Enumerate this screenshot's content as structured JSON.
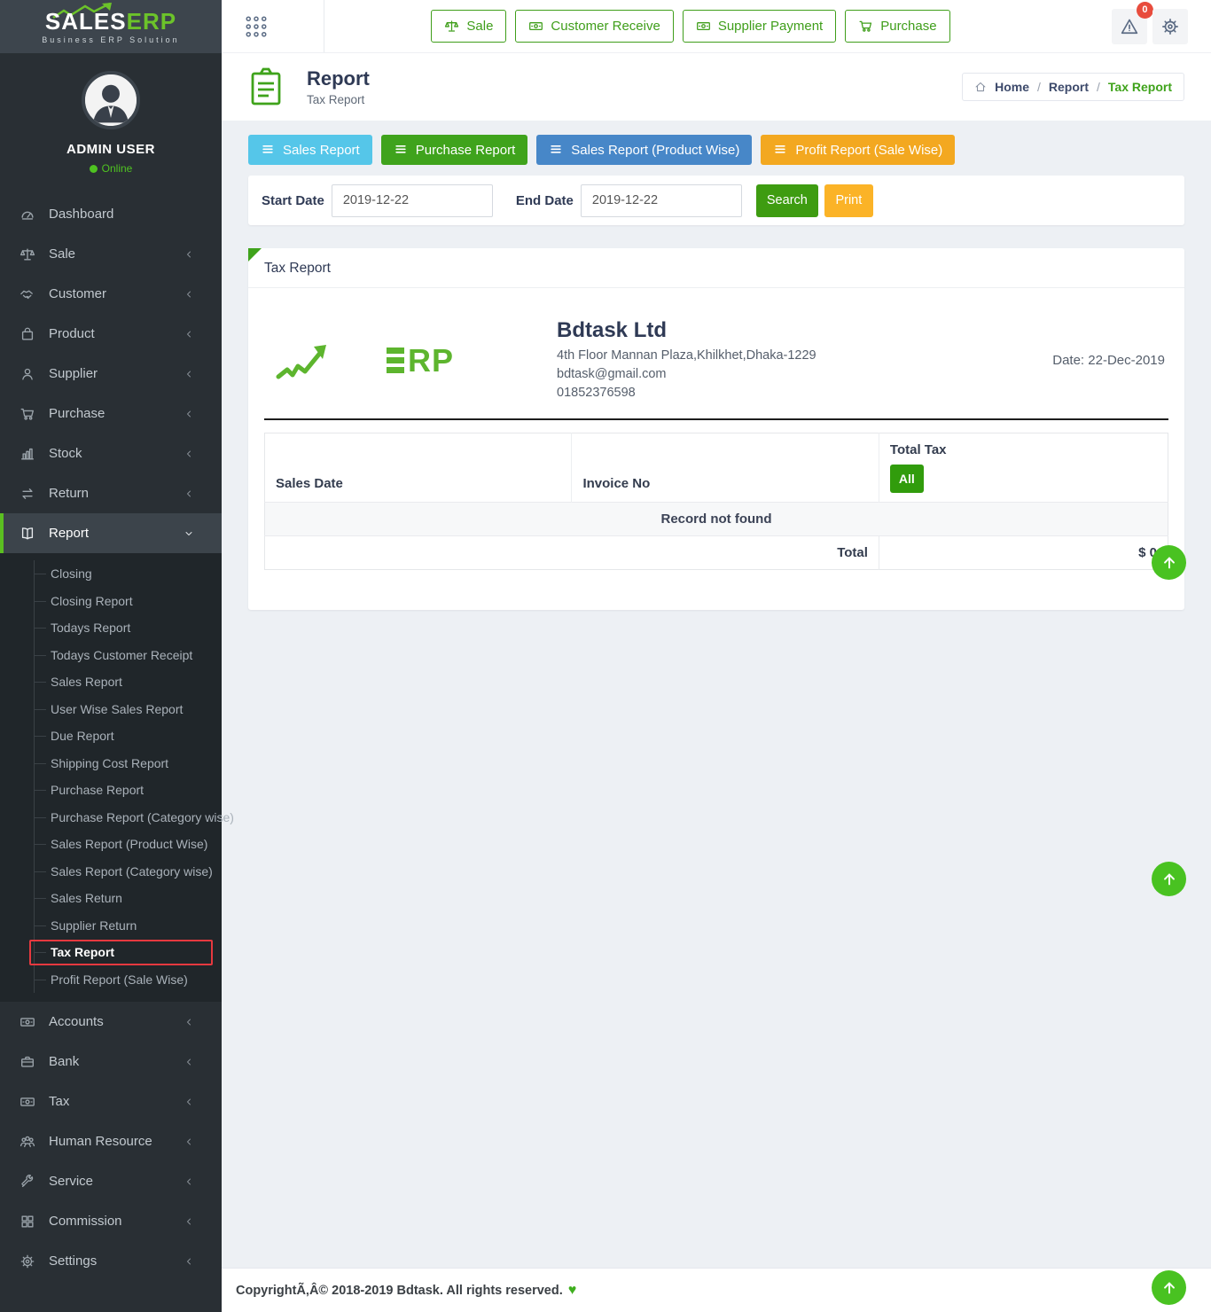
{
  "brand": {
    "title_white": "SALES",
    "title_green": "ERP",
    "subtitle": "Business ERP Solution"
  },
  "header": {
    "nav_buttons": [
      {
        "label": "Sale",
        "icon": "scale"
      },
      {
        "label": "Customer Receive",
        "icon": "money"
      },
      {
        "label": "Supplier Payment",
        "icon": "money"
      },
      {
        "label": "Purchase",
        "icon": "cart"
      }
    ],
    "alert_badge": "0"
  },
  "sidebar": {
    "user": {
      "name": "ADMIN USER",
      "status": "Online"
    },
    "items_top": [
      {
        "label": "Dashboard",
        "icon": "gauge",
        "chevron": "none"
      },
      {
        "label": "Sale",
        "icon": "scale",
        "chevron": "left"
      },
      {
        "label": "Customer",
        "icon": "handshake",
        "chevron": "left"
      },
      {
        "label": "Product",
        "icon": "bag",
        "chevron": "left"
      },
      {
        "label": "Supplier",
        "icon": "person",
        "chevron": "left"
      },
      {
        "label": "Purchase",
        "icon": "cart",
        "chevron": "left"
      },
      {
        "label": "Stock",
        "icon": "chart",
        "chevron": "left"
      },
      {
        "label": "Return",
        "icon": "exchange",
        "chevron": "left"
      },
      {
        "label": "Report",
        "icon": "book",
        "chevron": "down",
        "active": true
      }
    ],
    "report_submenu": [
      "Closing",
      "Closing Report",
      "Todays Report",
      "Todays Customer Receipt",
      "Sales Report",
      "User Wise Sales Report",
      "Due Report",
      "Shipping Cost Report",
      "Purchase Report",
      "Purchase Report (Category wise)",
      "Sales Report (Product Wise)",
      "Sales Report (Category wise)",
      "Sales Return",
      "Supplier Return",
      "Tax Report",
      "Profit Report (Sale Wise)"
    ],
    "active_submenu": "Tax Report",
    "items_bottom": [
      {
        "label": "Accounts",
        "icon": "money",
        "chevron": "left"
      },
      {
        "label": "Bank",
        "icon": "briefcase",
        "chevron": "left"
      },
      {
        "label": "Tax",
        "icon": "money",
        "chevron": "left"
      },
      {
        "label": "Human Resource",
        "icon": "people",
        "chevron": "left"
      },
      {
        "label": "Service",
        "icon": "tools",
        "chevron": "left"
      },
      {
        "label": "Commission",
        "icon": "grid",
        "chevron": "left"
      },
      {
        "label": "Settings",
        "icon": "gear",
        "chevron": "left"
      }
    ]
  },
  "page": {
    "title": "Report",
    "subtitle": "Tax Report",
    "breadcrumb": [
      "Home",
      "Report",
      "Tax Report"
    ],
    "separator": "/"
  },
  "tabs": [
    {
      "label": "Sales Report",
      "color": "#55c6e9"
    },
    {
      "label": "Purchase Report",
      "color": "#3fa31c"
    },
    {
      "label": "Sales Report (Product Wise)",
      "color": "#4787c8"
    },
    {
      "label": "Profit Report (Sale Wise)",
      "color": "#f3a820"
    }
  ],
  "filter": {
    "start_label": "Start Date",
    "start_value": "2019-12-22",
    "end_label": "End Date",
    "end_value": "2019-12-22",
    "search_label": "Search",
    "print_label": "Print"
  },
  "report_panel": {
    "title": "Tax Report",
    "company": {
      "name": "Bdtask Ltd",
      "address": "4th Floor Mannan Plaza,Khilkhet,Dhaka-1229",
      "email": "bdtask@gmail.com",
      "phone": "01852376598",
      "logo_text": "RP"
    },
    "date": "Date: 22-Dec-2019",
    "table": {
      "headers": [
        "Sales Date",
        "Invoice No",
        "Total Tax"
      ],
      "all_label": "All",
      "empty_text": "Record not found",
      "total_label": "Total",
      "total_value": "$ 0"
    }
  },
  "footer": {
    "copyright": "CopyrightÃ‚Â© 2018-2019 Bdtask. All rights reserved.",
    "heart": "♥"
  },
  "colors": {
    "accent_green": "#3fa31c",
    "badge_red": "#e84c3d",
    "highlight_red": "#e6393f",
    "scroll_green": "#49c221"
  }
}
